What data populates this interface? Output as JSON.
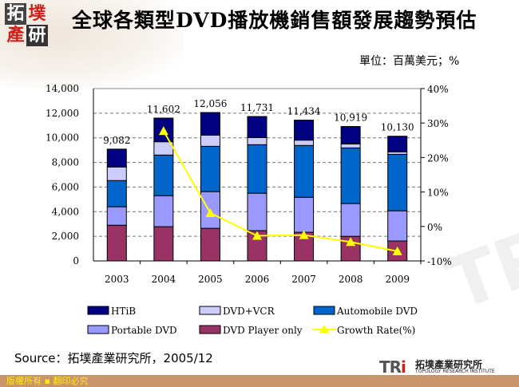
{
  "header": {
    "logo_text": "拓墣產研",
    "title": "全球各類型DVD播放機銷售額發展趨勢預估",
    "unit": "單位：百萬美元；%"
  },
  "chart_data": {
    "type": "bar",
    "stacked": true,
    "categories": [
      "2003",
      "2004",
      "2005",
      "2006",
      "2007",
      "2008",
      "2009"
    ],
    "ylim": [
      0,
      14000
    ],
    "yticks": [
      "0",
      "2,000",
      "4,000",
      "6,000",
      "8,000",
      "10,000",
      "12,000",
      "14,000"
    ],
    "y2lim": [
      -10,
      40
    ],
    "y2ticks": [
      "-10%",
      "0%",
      "10%",
      "20%",
      "30%",
      "40%"
    ],
    "grid": true,
    "legend_placement": "bottom",
    "series": [
      {
        "name": "DVD Player only",
        "color": "#993366",
        "values": [
          2900,
          2780,
          2650,
          2460,
          2330,
          2000,
          1620
        ]
      },
      {
        "name": "Portable DVD",
        "color": "#9999ff",
        "values": [
          1500,
          2520,
          2980,
          3040,
          2840,
          2660,
          2450
        ]
      },
      {
        "name": "Automobile DVD",
        "color": "#0066cc",
        "values": [
          2130,
          3300,
          3680,
          3940,
          4210,
          4520,
          4590
        ]
      },
      {
        "name": "DVD+VCR",
        "color": "#ccccff",
        "values": [
          1100,
          1080,
          910,
          580,
          430,
          320,
          200
        ]
      },
      {
        "name": "HTiB",
        "color": "#000080",
        "values": [
          1452,
          1922,
          1836,
          1711,
          1624,
          1419,
          1270
        ]
      }
    ],
    "totals": [
      "9,082",
      "11,602",
      "12,056",
      "11,731",
      "11,434",
      "10,919",
      "10,130"
    ],
    "line_series": {
      "name": "Growth Rate(%)",
      "color": "#ffff00",
      "axis": "right",
      "x": [
        "2004",
        "2005",
        "2006",
        "2007",
        "2008",
        "2009"
      ],
      "values": [
        27.7,
        3.9,
        -2.7,
        -2.5,
        -4.5,
        -7.2
      ]
    },
    "legend_order": [
      "HTiB",
      "DVD+VCR",
      "Automobile DVD",
      "Portable DVD",
      "DVD Player only",
      "Growth Rate(%)"
    ]
  },
  "source": "Source：拓墣產業研究所，2005/12",
  "footer": {
    "copyright": "版權所有 ▪ 翻印必究",
    "tri_mark": "TRI",
    "tri_cn": "拓墣產業研究所",
    "tri_en": "TOPOLOGY RESEARCH INSTITUTE"
  }
}
